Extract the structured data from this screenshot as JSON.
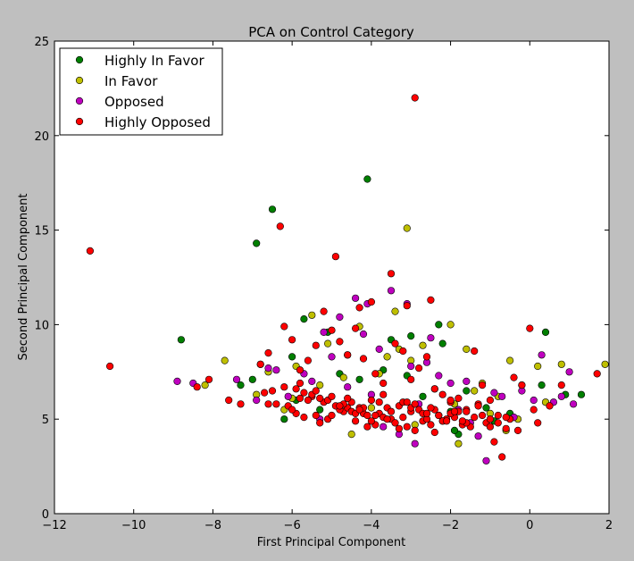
{
  "chart_data": {
    "type": "scatter",
    "title": "PCA on Control Category",
    "xlabel": "First Principal Component",
    "ylabel": "Second Principal Component",
    "xlim": [
      -12,
      2
    ],
    "ylim": [
      0,
      25
    ],
    "xticks": [
      -12,
      -10,
      -8,
      -6,
      -4,
      -2,
      0,
      2
    ],
    "yticks": [
      0,
      5,
      10,
      15,
      20,
      25
    ],
    "xtick_labels": [
      "−12",
      "−10",
      "−8",
      "−6",
      "−4",
      "−2",
      "0",
      "2"
    ],
    "ytick_labels": [
      "0",
      "5",
      "10",
      "15",
      "20",
      "25"
    ],
    "grid": false,
    "legend_position": "top-left",
    "series": [
      {
        "name": "Highly In Favor",
        "color": "#007f00",
        "x": [
          -6.5,
          -4.1,
          -6.9,
          -8.8,
          0.4,
          1.3,
          -5.7,
          -6.0,
          -7.0,
          -2.3,
          -2.2,
          -6.2,
          -5.1,
          -3.0,
          -1.8,
          -0.5,
          0.9,
          -4.6,
          -3.5,
          -2.0,
          -7.3,
          -5.9,
          -4.3,
          -1.6,
          -6.8,
          -0.9,
          0.3,
          -1.1,
          -3.7,
          -2.7,
          -5.3,
          -4.8,
          -3.1,
          -1.9
        ],
        "y": [
          16.1,
          17.7,
          14.3,
          9.2,
          9.6,
          6.3,
          10.3,
          8.3,
          7.1,
          10.0,
          9.0,
          5.0,
          9.6,
          9.4,
          4.2,
          5.3,
          6.3,
          8.4,
          9.2,
          5.4,
          6.8,
          6.0,
          7.1,
          6.5,
          7.9,
          4.9,
          6.8,
          5.6,
          7.6,
          6.2,
          5.5,
          7.4,
          7.3,
          4.4
        ]
      },
      {
        "name": "In Favor",
        "color": "#bfbf00",
        "x": [
          -3.1,
          -7.7,
          -8.2,
          -5.5,
          -3.4,
          -2.0,
          -4.3,
          -1.6,
          -0.5,
          0.8,
          1.9,
          -0.2,
          -5.9,
          -6.6,
          -4.0,
          -3.3,
          -2.7,
          -1.2,
          -0.8,
          0.2,
          -6.9,
          -5.1,
          -2.4,
          -1.8,
          -3.6,
          -4.7,
          -6.2,
          -2.9,
          -1.4,
          -0.3,
          -5.3,
          -4.5,
          -3.8,
          -2.2,
          -1.0,
          0.4,
          -6.0,
          -3.0,
          -1.9,
          -0.6
        ],
        "y": [
          15.1,
          8.1,
          6.8,
          10.5,
          10.7,
          10.0,
          9.9,
          8.7,
          8.1,
          7.9,
          7.9,
          6.8,
          7.8,
          7.5,
          5.6,
          8.7,
          8.9,
          6.9,
          6.2,
          7.8,
          6.3,
          9.0,
          6.6,
          3.7,
          8.3,
          7.2,
          5.5,
          4.7,
          6.5,
          5.0,
          6.8,
          4.2,
          7.4,
          4.9,
          5.3,
          5.9,
          6.1,
          8.1,
          5.8,
          4.4
        ]
      },
      {
        "name": "Opposed",
        "color": "#bf00bf",
        "x": [
          -8.9,
          -8.5,
          -3.5,
          -4.1,
          -3.1,
          -4.4,
          -5.2,
          -4.8,
          -7.4,
          -6.6,
          -2.5,
          -2.0,
          -1.1,
          -1.6,
          -0.7,
          0.3,
          0.6,
          1.0,
          1.1,
          -3.0,
          -4.6,
          -5.7,
          -6.1,
          -3.8,
          -2.8,
          -1.3,
          0.1,
          -0.4,
          -2.3,
          -3.3,
          -5.0,
          -6.4,
          -4.2,
          -1.8,
          -0.9,
          0.8,
          -5.5,
          -3.7,
          -2.6,
          -1.5,
          -0.2,
          -4.0,
          -2.9,
          -6.9,
          -5.3
        ],
        "y": [
          7.0,
          6.9,
          11.8,
          11.1,
          11.1,
          11.4,
          9.6,
          10.4,
          7.1,
          7.7,
          9.3,
          6.9,
          2.8,
          7.0,
          6.2,
          8.4,
          5.9,
          7.5,
          5.8,
          7.8,
          6.7,
          7.4,
          6.2,
          8.7,
          5.8,
          4.1,
          6.0,
          5.1,
          7.3,
          4.2,
          8.3,
          7.6,
          9.5,
          5.5,
          6.4,
          6.2,
          7.0,
          4.6,
          8.0,
          4.8,
          6.5,
          6.3,
          3.7,
          6.0,
          5.0
        ]
      },
      {
        "name": "Highly Opposed",
        "color": "#ff0000",
        "x": [
          -2.9,
          -11.1,
          -6.3,
          -4.9,
          -3.5,
          -2.5,
          -3.1,
          -4.3,
          -4.0,
          -10.6,
          -8.4,
          -8.1,
          -7.6,
          -7.3,
          -6.8,
          -6.6,
          -6.2,
          -6.0,
          -5.8,
          -5.6,
          -5.4,
          -5.2,
          -5.0,
          -4.8,
          -4.6,
          -4.4,
          -4.2,
          -3.9,
          -3.7,
          -3.4,
          -3.2,
          -3.0,
          -2.8,
          -2.6,
          -2.4,
          -2.2,
          -2.0,
          -1.8,
          -1.6,
          -1.4,
          -1.2,
          -1.0,
          -0.8,
          -0.6,
          -0.4,
          -0.2,
          0.0,
          0.2,
          0.5,
          0.8,
          1.7,
          -5.9,
          -5.5,
          -5.1,
          -4.7,
          -4.1,
          -3.6,
          -2.7,
          -2.3,
          -1.7,
          -1.3,
          -0.9,
          -0.3,
          0.1,
          -6.5,
          -5.7,
          -5.3,
          -4.5,
          -3.8,
          -3.3,
          -2.1,
          -1.5,
          -0.7,
          -6.1,
          -5.0,
          -4.4,
          -3.0,
          -2.4,
          -1.9,
          -1.1,
          -5.6,
          -4.8,
          -3.9,
          -3.5,
          -2.9,
          -2.0,
          -1.0,
          -6.4,
          -5.4,
          -4.6,
          -4.0,
          -3.2,
          -2.5,
          -1.6,
          -0.5,
          -5.8,
          -4.9,
          -4.2,
          -3.4,
          -2.8,
          -2.2,
          -1.2,
          -5.2,
          -4.3,
          -3.7,
          -3.1,
          -2.6,
          -1.8,
          -0.8,
          -6.7,
          -6.0,
          -5.5,
          -4.7,
          -4.1,
          -3.3,
          -2.7,
          -2.1,
          -1.4,
          -5.9,
          -5.1,
          -4.5,
          -3.8,
          -3.6,
          -3.0,
          -2.3,
          -1.6,
          -1.0,
          -6.2,
          -5.3,
          -4.8,
          -4.4,
          -4.0,
          -3.5,
          -2.9,
          -2.4,
          -1.7,
          -5.7,
          -5.0,
          -4.2,
          -3.9,
          -3.2,
          -2.6,
          -2.0,
          -1.3,
          -0.6,
          -6.6,
          -5.8,
          -5.4,
          -4.6,
          -4.3,
          -3.7,
          -3.1,
          -2.5,
          -1.9
        ],
        "y": [
          22.0,
          13.9,
          15.2,
          13.6,
          12.7,
          11.3,
          11.0,
          10.9,
          11.2,
          7.8,
          6.7,
          7.1,
          6.0,
          5.8,
          7.9,
          8.5,
          9.9,
          9.2,
          7.6,
          8.1,
          8.9,
          10.7,
          9.7,
          9.1,
          8.4,
          9.8,
          8.2,
          7.4,
          6.9,
          9.0,
          8.6,
          7.1,
          7.7,
          8.3,
          6.6,
          6.3,
          5.9,
          6.1,
          5.5,
          8.6,
          6.8,
          6.0,
          5.2,
          4.5,
          7.2,
          6.8,
          9.8,
          4.8,
          5.7,
          6.8,
          7.4,
          5.3,
          6.2,
          5.0,
          5.4,
          4.6,
          5.6,
          4.9,
          5.2,
          4.7,
          5.8,
          3.8,
          4.4,
          5.5,
          6.5,
          5.1,
          4.8,
          5.9,
          5.3,
          4.5,
          5.0,
          4.6,
          3.0,
          5.7,
          5.2,
          4.9,
          5.4,
          4.3,
          5.1,
          4.8,
          6.0,
          5.5,
          4.7,
          5.0,
          4.4,
          5.3,
          4.6,
          5.8,
          5.2,
          5.6,
          4.9,
          5.1,
          4.7,
          5.4,
          5.0,
          6.1,
          5.7,
          5.3,
          4.8,
          5.5,
          4.9,
          5.2,
          5.9,
          5.6,
          5.1,
          4.6,
          5.0,
          5.4,
          4.8,
          6.4,
          5.5,
          6.3,
          5.8,
          5.2,
          5.7,
          5.3,
          4.9,
          5.1,
          6.6,
          6.0,
          5.4,
          5.9,
          5.0,
          5.6,
          5.2,
          4.8,
          5.0,
          6.7,
          6.1,
          5.7,
          5.3,
          6.0,
          5.4,
          5.8,
          5.5,
          4.9,
          6.4,
          6.2,
          5.6,
          5.2,
          5.9,
          5.3,
          6.0,
          5.7,
          5.1,
          5.8,
          6.9,
          6.5,
          6.1,
          5.5,
          6.3,
          5.9,
          5.6,
          5.4
        ]
      }
    ]
  }
}
